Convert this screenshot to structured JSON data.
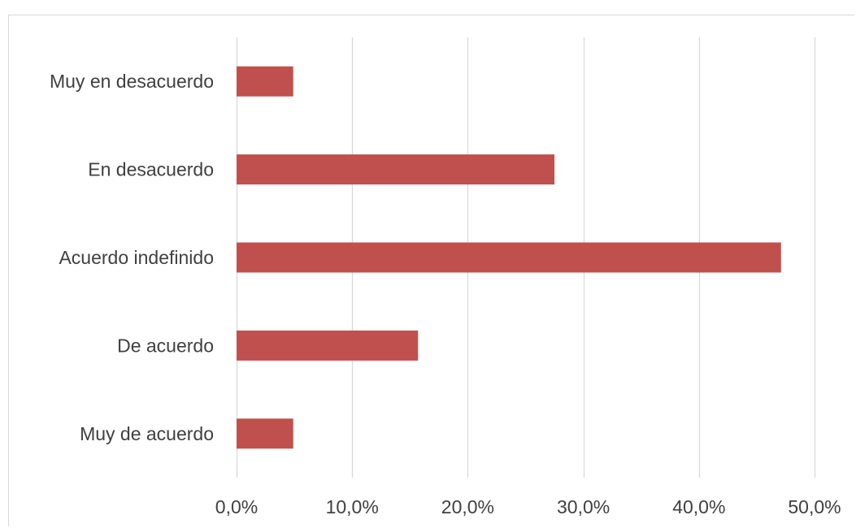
{
  "chart_data": {
    "type": "bar",
    "orientation": "horizontal",
    "categories": [
      "Muy en desacuerdo",
      "En desacuerdo",
      "Acuerdo indefinido",
      "De acuerdo",
      "Muy de acuerdo"
    ],
    "values": [
      4.9,
      27.5,
      47.1,
      15.7,
      4.9
    ],
    "xlim": [
      0,
      50
    ],
    "x_ticks": [
      0,
      10,
      20,
      30,
      40,
      50
    ],
    "x_tick_labels": [
      "0,0%",
      "10,0%",
      "20,0%",
      "30,0%",
      "40,0%",
      "50,0%"
    ],
    "grid": "vertical",
    "bar_color": "#c0504d",
    "grid_color": "#d9d9d9",
    "text_color": "#404040"
  }
}
